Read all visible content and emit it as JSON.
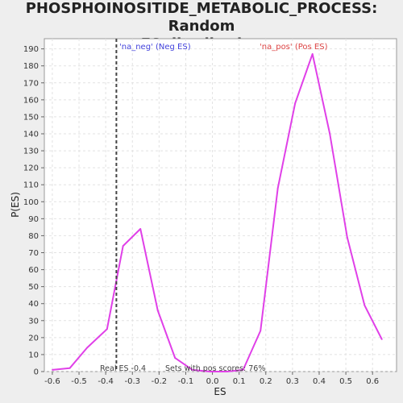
{
  "chart_data": {
    "type": "line",
    "title_lines": [
      "PHOSPHOINOSITIDE_METABOLIC_PROCESS: Random",
      "ES distribution"
    ],
    "xlabel": "ES",
    "ylabel": "P(ES)",
    "xlim": [
      -0.63,
      0.69
    ],
    "ylim": [
      0,
      196
    ],
    "x_ticks": [
      -0.6,
      -0.5,
      -0.4,
      -0.3,
      -0.2,
      -0.1,
      0.0,
      0.1,
      0.2,
      0.3,
      0.4,
      0.5,
      0.6
    ],
    "x_tick_labels": [
      "-0.6",
      "-0.5",
      "-0.4",
      "-0.3",
      "-0.2",
      "-0.1",
      "0.0",
      "0.1",
      "0.2",
      "0.3",
      "0.4",
      "0.5",
      "0.6"
    ],
    "y_ticks": [
      0,
      10,
      20,
      30,
      40,
      50,
      60,
      70,
      80,
      90,
      100,
      110,
      120,
      130,
      140,
      150,
      160,
      170,
      180,
      190
    ],
    "y_tick_labels": [
      "0",
      "10",
      "20",
      "30",
      "40",
      "50",
      "60",
      "70",
      "80",
      "90",
      "100",
      "110",
      "120",
      "130",
      "140",
      "150",
      "160",
      "170",
      "180",
      "190"
    ],
    "grid": true,
    "series": [
      {
        "color": "#e040e8",
        "x": [
          -0.6,
          -0.535,
          -0.47,
          -0.395,
          -0.335,
          -0.27,
          -0.205,
          -0.14,
          -0.075,
          -0.01,
          0.055,
          0.115,
          0.18,
          0.245,
          0.31,
          0.375,
          0.44,
          0.505,
          0.57,
          0.635
        ],
        "y": [
          1,
          2,
          14,
          25,
          74,
          84,
          36,
          8,
          1,
          0,
          0,
          1,
          24,
          108,
          158,
          187,
          140,
          79,
          39,
          19
        ]
      }
    ],
    "vline": {
      "x": -0.36,
      "style": "dashed",
      "color": "#444444"
    },
    "annotations": {
      "neg_label": {
        "text": "'na_neg' (Neg ES)",
        "color": "#4444dd"
      },
      "pos_label": {
        "text": "'na_pos' (Pos ES)",
        "color": "#dd4444"
      },
      "real_es": {
        "text": "Real ES -0.4"
      },
      "pos_scores": {
        "text": "Sets with pos scores: 76%"
      }
    }
  }
}
